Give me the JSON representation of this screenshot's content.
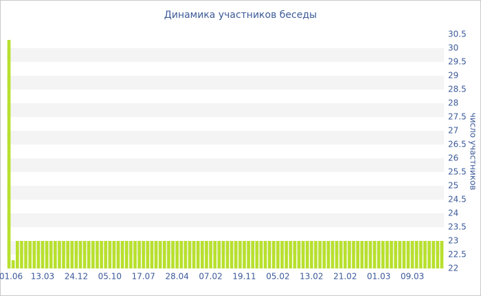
{
  "chart_data": {
    "type": "bar",
    "title": "Динамика участников беседы",
    "y_label": "число участников",
    "categories": [
      "01.06",
      null,
      null,
      null,
      null,
      null,
      null,
      null,
      "13.03",
      null,
      null,
      null,
      null,
      null,
      null,
      null,
      "24.12",
      null,
      null,
      null,
      null,
      null,
      null,
      null,
      "05.10",
      null,
      null,
      null,
      null,
      null,
      null,
      null,
      "17.07",
      null,
      null,
      null,
      null,
      null,
      null,
      null,
      "28.04",
      null,
      null,
      null,
      null,
      null,
      null,
      null,
      "07.02",
      null,
      null,
      null,
      null,
      null,
      null,
      null,
      "19.11",
      null,
      null,
      null,
      null,
      null,
      null,
      null,
      "05.02",
      null,
      null,
      null,
      null,
      null,
      null,
      null,
      "13.02",
      null,
      null,
      null,
      null,
      null,
      null,
      null,
      "21.02",
      null,
      null,
      null,
      null,
      null,
      null,
      null,
      "01.03",
      null,
      null,
      null,
      null,
      null,
      null,
      null,
      "09.03",
      null,
      null,
      null,
      null,
      null,
      null,
      null
    ],
    "values": [
      30.3,
      22.3,
      23,
      23,
      23,
      23,
      23,
      23,
      23,
      23,
      23,
      23,
      23,
      23,
      23,
      23,
      23,
      23,
      23,
      23,
      23,
      23,
      23,
      23,
      23,
      23,
      23,
      23,
      23,
      23,
      23,
      23,
      23,
      23,
      23,
      23,
      23,
      23,
      23,
      23,
      23,
      23,
      23,
      23,
      23,
      23,
      23,
      23,
      23,
      23,
      23,
      23,
      23,
      23,
      23,
      23,
      23,
      23,
      23,
      23,
      23,
      23,
      23,
      23,
      23,
      23,
      23,
      23,
      23,
      23,
      23,
      23,
      23,
      23,
      23,
      23,
      23,
      23,
      23,
      23,
      23,
      23,
      23,
      23,
      23,
      23,
      23,
      23,
      23,
      23,
      23,
      23,
      23,
      23,
      23,
      23,
      23,
      23,
      23,
      23,
      23,
      23,
      23,
      23
    ],
    "color": "#b8e02e",
    "ylim": [
      22,
      30.5
    ],
    "yticks": [
      22,
      22.5,
      23,
      23.5,
      24,
      24.5,
      25,
      25.5,
      26,
      26.5,
      27,
      27.5,
      28,
      28.5,
      29,
      29.5,
      30,
      30.5
    ],
    "y_axis_side": "right",
    "grid": "bands"
  }
}
